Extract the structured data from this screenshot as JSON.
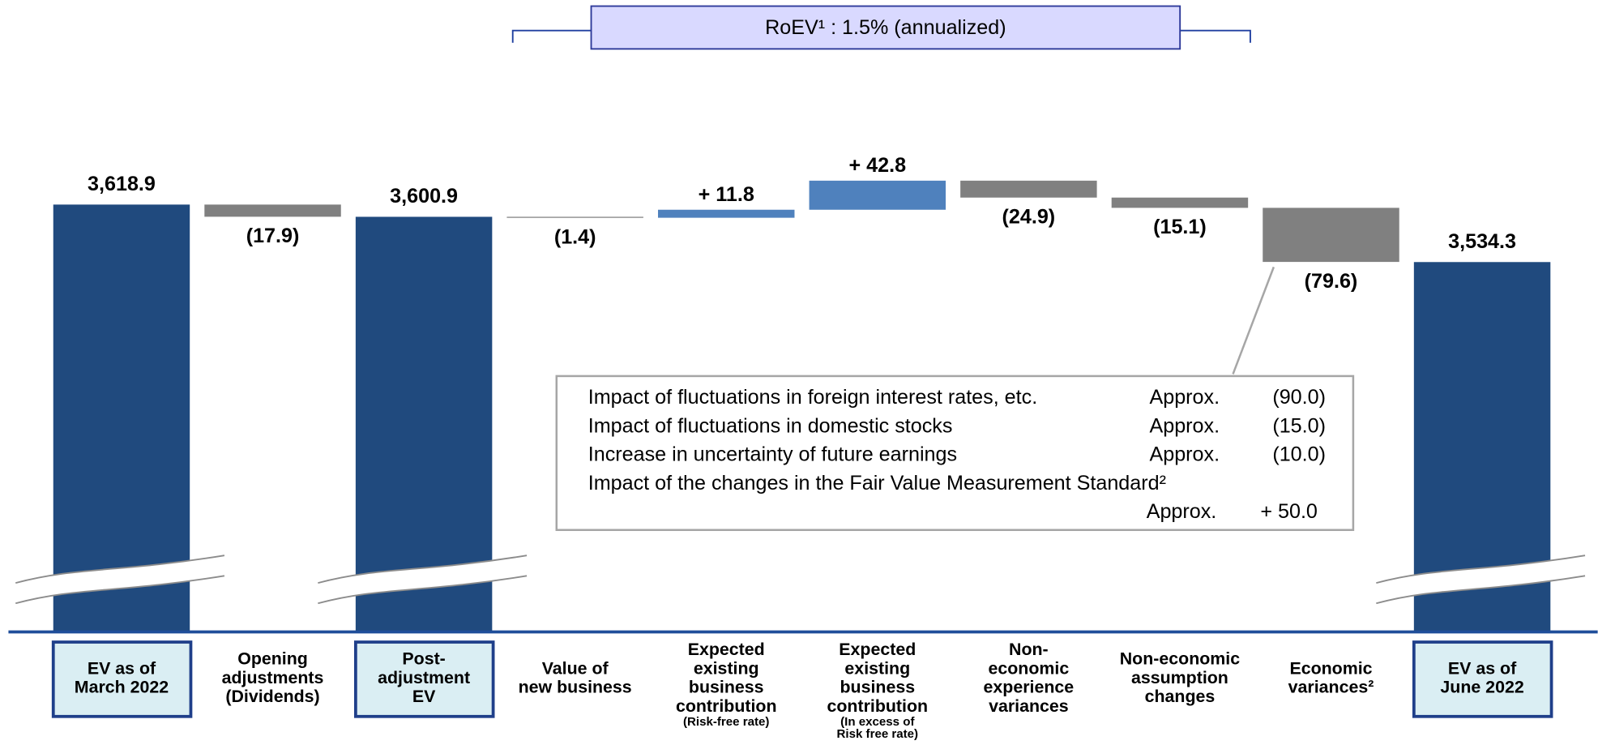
{
  "chart_data": {
    "type": "waterfall",
    "annotation": "RoEV¹ : 1.5% (annualized)",
    "categories": [
      [
        "EV as of",
        "March 2022"
      ],
      [
        "Opening",
        "adjustments",
        "(Dividends)"
      ],
      [
        "Post-",
        "adjustment",
        "EV"
      ],
      [
        "Value of",
        "new business"
      ],
      [
        "Expected",
        "existing",
        "business",
        "contribution"
      ],
      [
        "Expected",
        "existing",
        "business",
        "contribution"
      ],
      [
        "Non-",
        "economic",
        "experience",
        "variances"
      ],
      [
        "Non-economic",
        "assumption",
        "changes"
      ],
      [
        "Economic",
        "variances²"
      ],
      [
        "EV as of",
        "June 2022"
      ]
    ],
    "category_notes": [
      null,
      null,
      null,
      null,
      [
        "(Risk-free rate)"
      ],
      [
        "(In excess of",
        "Risk free rate)"
      ],
      null,
      null,
      null,
      null
    ],
    "values": [
      3618.9,
      -17.9,
      3600.9,
      -1.4,
      11.8,
      42.8,
      -24.9,
      -15.1,
      -79.6,
      3534.3
    ],
    "value_labels": [
      "3,618.9",
      "(17.9)",
      "3,600.9",
      "(1.4)",
      "+ 11.8",
      "+ 42.8",
      "(24.9)",
      "(15.1)",
      "(79.6)",
      "3,534.3"
    ],
    "total_indices": [
      0,
      2,
      9
    ],
    "colors": {
      "total": "#204a7e",
      "increase": "#4f81bd",
      "decrease": "#808080"
    },
    "ylim": [
      2990,
      3920
    ],
    "callout": {
      "rows": [
        {
          "label": "Impact of fluctuations in foreign interest rates, etc.",
          "qualifier": "Approx.",
          "amount": "(90.0)"
        },
        {
          "label": "Impact of fluctuations in domestic stocks",
          "qualifier": "Approx.",
          "amount": "(15.0)"
        },
        {
          "label": "Increase in uncertainty of future earnings",
          "qualifier": "Approx.",
          "amount": "(10.0)"
        },
        {
          "label": "Impact of the changes in the Fair Value Measurement Standard²",
          "qualifier": "Approx.",
          "amount": "+ 50.0"
        }
      ]
    }
  }
}
